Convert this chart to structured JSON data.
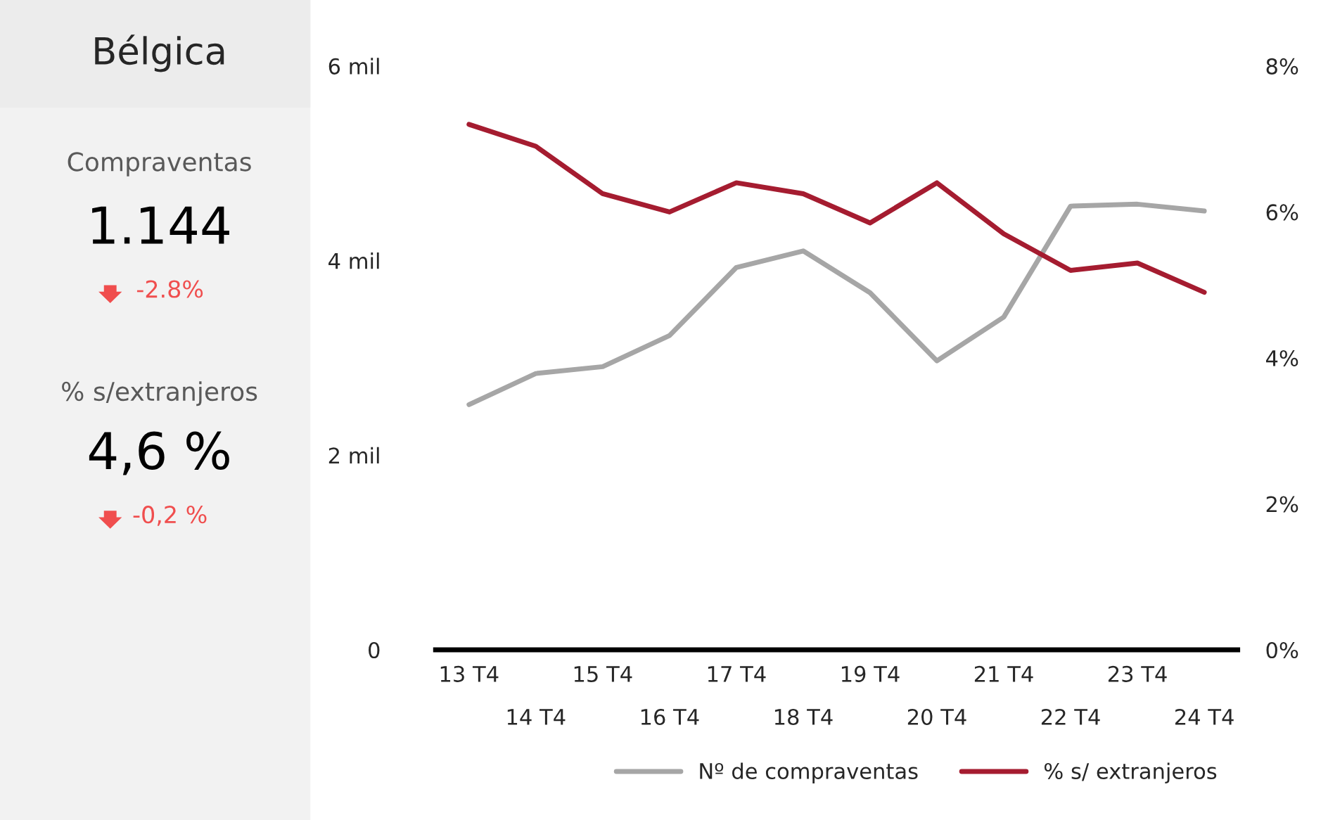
{
  "chart_data": {
    "type": "line",
    "title": "Bélgica",
    "categories": [
      "13 T4",
      "14 T4",
      "15 T4",
      "16 T4",
      "17 T4",
      "18 T4",
      "19 T4",
      "20 T4",
      "21 T4",
      "22 T4",
      "23 T4",
      "24 T4"
    ],
    "series": [
      {
        "name": "Nº de compraventas",
        "color": "#a6a6a6",
        "values": [
          2.52,
          2.84,
          2.91,
          3.23,
          3.93,
          4.1,
          3.67,
          2.97,
          3.42,
          4.56,
          4.58,
          4.51
        ]
      },
      {
        "name": "% s/ extranjeros",
        "color": "#a51c30",
        "axis": "y2",
        "values": [
          7.2,
          6.9,
          6.25,
          6.0,
          6.4,
          6.25,
          5.85,
          6.4,
          5.7,
          5.2,
          5.3,
          4.9
        ]
      }
    ],
    "ylim": [
      0,
      6
    ],
    "yticks": [
      0,
      {
        "value": 2,
        "label": "2 mil"
      },
      {
        "value": 4,
        "label": "4 mil"
      },
      {
        "value": 6,
        "label": "6 mil"
      }
    ],
    "y2lim": [
      0,
      8
    ],
    "y2ticks": [
      {
        "value": 0,
        "label": "0%"
      },
      {
        "value": 2,
        "label": "2%"
      },
      {
        "value": 4,
        "label": "4%"
      },
      {
        "value": 6,
        "label": "6%"
      },
      {
        "value": 8,
        "label": "8%"
      }
    ],
    "grid": false,
    "legend": "bottom",
    "marker": "none",
    "line_style": "solid",
    "annotations": [
      "Compraventas",
      "1.144",
      "-2.8%",
      "% s/extranjeros",
      "4,6 %",
      "-0,2 %"
    ]
  }
}
